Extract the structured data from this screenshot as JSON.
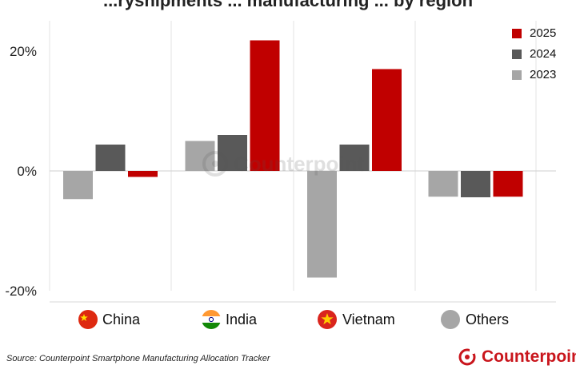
{
  "title": "...ryshipments ... manufacturing ... by region",
  "chart_data": {
    "type": "bar",
    "categories": [
      "China",
      "India",
      "Vietnam",
      "Others"
    ],
    "series": [
      {
        "name": "2023",
        "color": "#a6a6a6",
        "values": [
          -4.7,
          5.0,
          -17.8,
          -4.3
        ]
      },
      {
        "name": "2024",
        "color": "#595959",
        "values": [
          4.4,
          6.0,
          4.4,
          -4.4
        ]
      },
      {
        "name": "2025",
        "color": "#c00000",
        "values": [
          -1.0,
          21.8,
          17.0,
          -4.3
        ]
      }
    ],
    "ylim": [
      -20,
      25
    ],
    "yticks": [
      "20%",
      "0%",
      "-20%"
    ],
    "legend": [
      "2025",
      "2024",
      "2023"
    ],
    "xlabel": "",
    "ylabel": ""
  },
  "source": "Source: Counterpoint Smartphone Manufacturing Allocation Tracker",
  "brand": "Counterpoint",
  "watermark": "Counterpoint"
}
